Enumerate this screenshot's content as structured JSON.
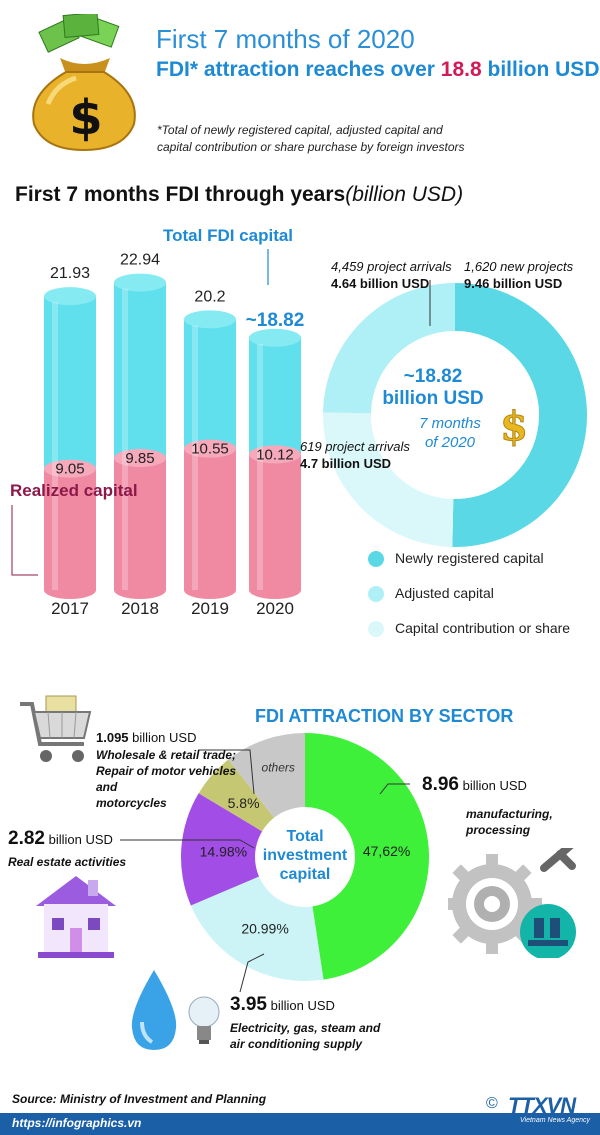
{
  "header": {
    "title_line1": "First 7 months of 2020",
    "title_line2_prefix": "FDI* attraction reaches over ",
    "title_line2_highlight": "18.8",
    "title_line2_suffix": " billion USD",
    "note_line1": "*Total of newly registered capital, adjusted capital and",
    "note_line2": "capital contribution or share purchase by foreign investors"
  },
  "section1": {
    "title": "First 7 months FDI through years",
    "unit": "(billion USD)",
    "total_label": "Total FDI capital",
    "realized_label": "Realized capital",
    "approx_2020": "~18.82"
  },
  "donut": {
    "center_value": "~18.82",
    "center_unit": "billion USD",
    "center_sub1": "7 months",
    "center_sub2": "of 2020",
    "label_adjusted_count": "4,459 project arrivals",
    "label_adjusted_value": "4.64 billion USD",
    "label_new_count": "1,620  new projects",
    "label_new_value": "9.46 billion USD",
    "label_contrib_count": "619 project arrivals",
    "label_contrib_value": "4.7 billion USD"
  },
  "legend": {
    "new": "Newly registered capital",
    "adjusted": "Adjusted capital",
    "contribution": "Capital contribution or share"
  },
  "colors": {
    "total_bar": "#5fe0ec",
    "realized_bar": "#f08aa3",
    "new_capital": "#5ad8e6",
    "adjusted_capital": "#aef0f5",
    "contribution": "#daf8fa",
    "manufacturing": "#3ef03a",
    "electricity": "#ccf4f7",
    "real_estate": "#a24de6",
    "wholesale": "#c6c773",
    "others": "#c8c8c8",
    "title_blue": "#1f8ad4",
    "highlight_red": "#d11b57"
  },
  "section2": {
    "title": "FDI ATTRACTION BY SECTOR",
    "center_line1": "Total",
    "center_line2": "investment",
    "center_line3": "capital",
    "others_label": "others",
    "wholesale_value": "1.095",
    "wholesale_unit": " billion USD",
    "wholesale_desc1": "Wholesale & retail trade;",
    "wholesale_desc2": "Repair of motor vehicles and",
    "wholesale_desc3": "motorcycles",
    "realestate_value": "2.82",
    "realestate_unit": " billion USD",
    "realestate_desc": "Real estate activities",
    "manufacturing_value": "8.96",
    "manufacturing_unit": " billion USD",
    "manufacturing_desc1": "manufacturing,",
    "manufacturing_desc2": "processing",
    "electricity_value": "3.95",
    "electricity_unit": " billion USD",
    "electricity_desc1": "Electricity, gas, steam and",
    "electricity_desc2": "air conditioning supply"
  },
  "footer": {
    "source": "Source: Ministry of Investment and Planning",
    "url": "https://infographics.vn",
    "copyright": "©",
    "logo": "TTXVN",
    "agency": "Vietnam News Agency"
  },
  "chart_data": [
    {
      "type": "bar",
      "categories": [
        "2017",
        "2018",
        "2019",
        "2020"
      ],
      "series": [
        {
          "name": "Total FDI capital",
          "values": [
            21.93,
            22.94,
            20.2,
            18.82
          ],
          "labels": [
            "21.93",
            "22.94",
            "20.2",
            "~18.82"
          ]
        },
        {
          "name": "Realized capital",
          "values": [
            9.05,
            9.85,
            10.55,
            10.12
          ],
          "labels": [
            "9.05",
            "9.85",
            "10.55",
            "10.12"
          ]
        }
      ],
      "title": "First 7 months FDI through years",
      "ylabel": "(billion USD)",
      "ylim": [
        0,
        25
      ]
    },
    {
      "type": "pie",
      "style": "donut",
      "labels": [
        "Newly registered capital",
        "Adjusted capital",
        "Capital contribution or share"
      ],
      "values": [
        9.46,
        4.64,
        4.7
      ],
      "total": 18.82
    },
    {
      "type": "pie",
      "labels": [
        "manufacturing, processing",
        "Electricity, gas, steam and air conditioning supply",
        "Real estate activities",
        "Wholesale & retail trade; Repair of motor vehicles and motorcycles",
        "others"
      ],
      "values": [
        47.62,
        20.99,
        14.98,
        5.8,
        10.61
      ],
      "value_labels": [
        "47,62%",
        "20.99%",
        "14.98%",
        "5.8%",
        ""
      ],
      "title": "FDI ATTRACTION BY SECTOR"
    }
  ]
}
